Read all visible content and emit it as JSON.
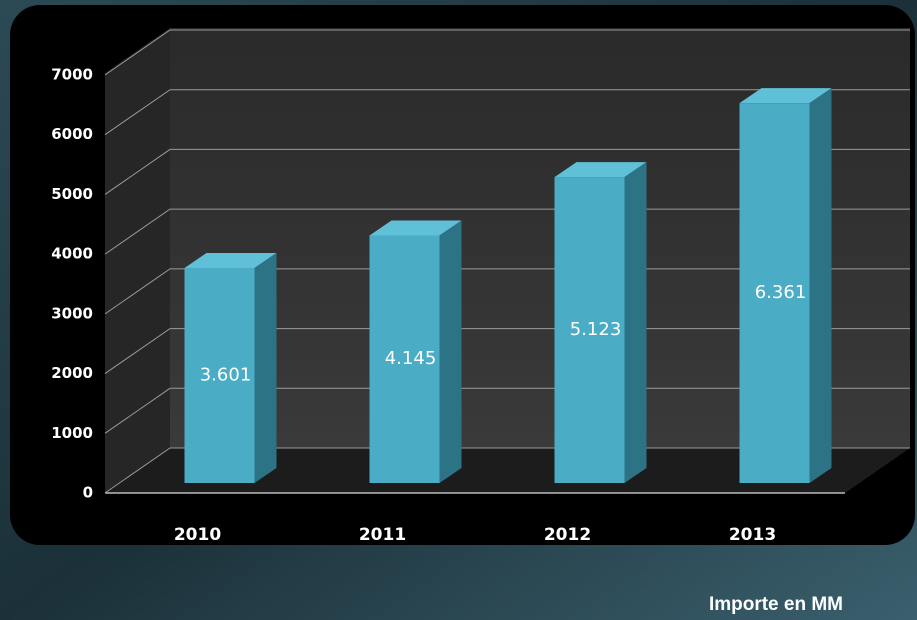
{
  "chart_data": {
    "type": "bar",
    "categories": [
      "2010",
      "2011",
      "2012",
      "2013"
    ],
    "values": [
      3601,
      4145,
      5123,
      6361
    ],
    "value_labels": [
      "3.601",
      "4.145",
      "5.123",
      "6.361"
    ],
    "color": "#4bacc6",
    "ylim": [
      0,
      7000
    ],
    "yticks": [
      0,
      1000,
      2000,
      3000,
      4000,
      5000,
      6000,
      7000
    ],
    "grid": true,
    "footnote": "Importe en MM"
  }
}
